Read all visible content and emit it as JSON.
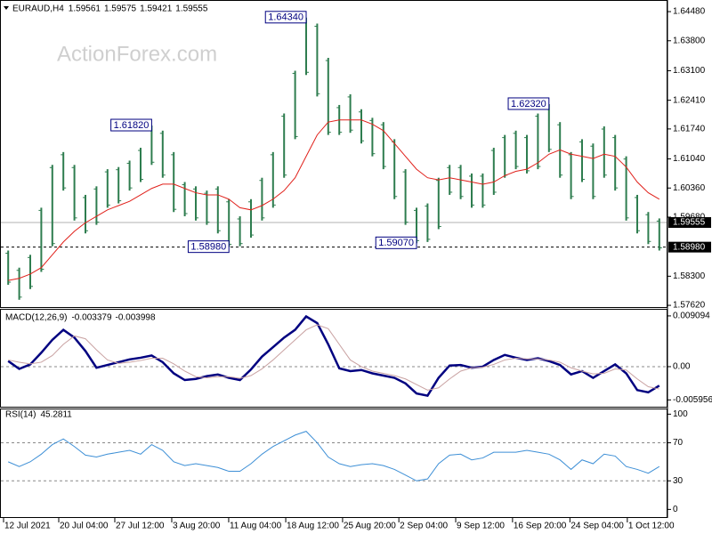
{
  "chart_data": [
    {
      "type": "price-bar",
      "title": "EURAUD,H4",
      "quote": [
        1.59561,
        1.59575,
        1.59421,
        1.59555
      ],
      "watermark": "ActionForex.com",
      "color": "#2e7d4f",
      "xlim": [
        -0.5,
        59.5
      ],
      "xticks": [
        {
          "value": -0.42,
          "label": "12 Jul 2021"
        },
        {
          "value": 4.58,
          "label": "20 Jul 04:00"
        },
        {
          "value": 9.66,
          "label": "27 Jul 12:00"
        },
        {
          "value": 14.82,
          "label": "3 Aug 20:00"
        },
        {
          "value": 19.98,
          "label": "11 Aug 04:00"
        },
        {
          "value": 25.15,
          "label": "18 Aug 12:00"
        },
        {
          "value": 30.3,
          "label": "25 Aug 20:00"
        },
        {
          "value": 35.4,
          "label": "2 Sep 04:00"
        },
        {
          "value": 40.55,
          "label": "9 Sep 12:00"
        },
        {
          "value": 45.7,
          "label": "16 Sep 20:00"
        },
        {
          "value": 50.9,
          "label": "24 Sep 04:00"
        },
        {
          "value": 56.1,
          "label": "1 Oct 12:00"
        }
      ],
      "ylim": [
        1.5758,
        1.6471
      ],
      "yticks": [
        {
          "value": 1.6448,
          "label": "1.64480"
        },
        {
          "value": 1.638,
          "label": "1.63800"
        },
        {
          "value": 1.631,
          "label": "1.63100"
        },
        {
          "value": 1.6241,
          "label": "1.62410"
        },
        {
          "value": 1.6174,
          "label": "1.61740"
        },
        {
          "value": 1.6104,
          "label": "1.61040"
        },
        {
          "value": 1.6036,
          "label": "1.60360"
        },
        {
          "value": 1.5968,
          "label": "1.59680"
        },
        {
          "value": 1.583,
          "label": "1.58300"
        },
        {
          "value": 1.5762,
          "label": "1.57620"
        }
      ],
      "last_price": 1.59555,
      "level_line": {
        "value": 1.5898,
        "label": "1.58980"
      },
      "annotations": [
        {
          "bar": 13,
          "value": 1.6182,
          "label": "1.61820"
        },
        {
          "bar": 27,
          "value": 1.6434,
          "label": "1.64340"
        },
        {
          "bar": 20,
          "value": 1.5898,
          "label": "1.58980"
        },
        {
          "bar": 37,
          "value": 1.5907,
          "label": "1.59070"
        },
        {
          "bar": 49,
          "value": 1.6232,
          "label": "1.62320"
        }
      ],
      "high": [
        1.589,
        1.585,
        1.588,
        1.599,
        1.609,
        1.612,
        1.609,
        1.602,
        1.604,
        1.608,
        1.6085,
        1.61,
        1.613,
        1.6182,
        1.617,
        1.612,
        1.605,
        1.604,
        1.603,
        1.604,
        1.601,
        1.597,
        1.601,
        1.606,
        1.612,
        1.621,
        1.631,
        1.6434,
        1.642,
        1.634,
        1.623,
        1.6255,
        1.622,
        1.62,
        1.619,
        1.615,
        1.608,
        1.599,
        1.6,
        1.606,
        1.609,
        1.609,
        1.607,
        1.607,
        1.613,
        1.616,
        1.617,
        1.616,
        1.621,
        1.6232,
        1.619,
        1.612,
        1.615,
        1.614,
        1.618,
        1.616,
        1.611,
        1.602,
        1.598,
        1.5965
      ],
      "low": [
        1.581,
        1.5775,
        1.58,
        1.584,
        1.59,
        1.603,
        1.596,
        1.593,
        1.595,
        1.599,
        1.6,
        1.603,
        1.605,
        1.609,
        1.606,
        1.598,
        1.597,
        1.596,
        1.595,
        1.593,
        1.5898,
        1.59,
        1.592,
        1.596,
        1.599,
        1.606,
        1.615,
        1.63,
        1.625,
        1.616,
        1.616,
        1.6165,
        1.614,
        1.611,
        1.608,
        1.601,
        1.595,
        1.5907,
        1.591,
        1.594,
        1.602,
        1.601,
        1.599,
        1.599,
        1.602,
        1.606,
        1.608,
        1.607,
        1.608,
        1.612,
        1.606,
        1.601,
        1.605,
        1.601,
        1.606,
        1.603,
        1.596,
        1.593,
        1.5905,
        1.589
      ],
      "ma": {
        "color": "#e0201a",
        "values": [
          1.582,
          1.5825,
          1.5835,
          1.585,
          1.588,
          1.591,
          1.5935,
          1.5955,
          1.597,
          1.5985,
          1.5995,
          1.6005,
          1.602,
          1.6035,
          1.6045,
          1.6045,
          1.6035,
          1.6025,
          1.602,
          1.602,
          1.601,
          1.599,
          1.5985,
          1.5995,
          1.601,
          1.603,
          1.606,
          1.611,
          1.616,
          1.619,
          1.6195,
          1.6195,
          1.6195,
          1.6185,
          1.617,
          1.614,
          1.611,
          1.608,
          1.606,
          1.6055,
          1.606,
          1.6055,
          1.605,
          1.6045,
          1.605,
          1.6065,
          1.6075,
          1.608,
          1.6095,
          1.6115,
          1.6125,
          1.6115,
          1.611,
          1.6105,
          1.6115,
          1.611,
          1.6085,
          1.605,
          1.6025,
          1.601
        ]
      }
    },
    {
      "type": "macd",
      "title": "MACD(12,26,9)",
      "readouts": [
        -0.003379,
        -0.003998
      ],
      "ylim": [
        -0.00734,
        0.0102
      ],
      "yticks": [
        0.009094,
        {
          "value": 0,
          "label": "0.00"
        },
        -0.005956
      ],
      "levels": [
        0
      ],
      "series": [
        {
          "color": "#000080",
          "values": [
            0.001,
            -0.0004,
            0.0004,
            0.0025,
            0.0048,
            0.0066,
            0.0052,
            0.0028,
            -0.0002,
            0.0003,
            0.0008,
            0.0013,
            0.0016,
            0.002,
            0.0008,
            -0.0012,
            -0.0024,
            -0.0022,
            -0.0017,
            -0.0014,
            -0.002,
            -0.0024,
            -0.0005,
            0.0018,
            0.0035,
            0.0052,
            0.0066,
            0.009,
            0.0078,
            0.004,
            -0.0003,
            -0.0008,
            -0.0006,
            -0.0012,
            -0.0016,
            -0.002,
            -0.003,
            -0.0048,
            -0.0052,
            -0.002,
            0.0002,
            0.0003,
            -0.0002,
            0,
            0.0012,
            0.0021,
            0.0016,
            0.0012,
            0.0015,
            0.001,
            0.0003,
            -0.0014,
            -0.0008,
            -0.002,
            -0.0008,
            0.0004,
            -0.0012,
            -0.0042,
            -0.0046,
            -0.0034
          ]
        },
        {
          "color": "#c9a2a2",
          "values": [
            0.0012,
            0.0008,
            0.0005,
            0.0008,
            0.002,
            0.004,
            0.0055,
            0.005,
            0.003,
            0.0012,
            0.0006,
            0.0008,
            0.0011,
            0.0015,
            0.0015,
            0.0005,
            -0.0008,
            -0.0018,
            -0.002,
            -0.0018,
            -0.0018,
            -0.0021,
            -0.0016,
            -0.0004,
            0.0012,
            0.003,
            0.0048,
            0.0066,
            0.0075,
            0.0068,
            0.004,
            0.0012,
            0,
            -0.0008,
            -0.0012,
            -0.0016,
            -0.0022,
            -0.0032,
            -0.0042,
            -0.0038,
            -0.0022,
            -0.0008,
            -0.0002,
            -0.0001,
            0.0004,
            0.0012,
            0.0015,
            0.0014,
            0.0014,
            0.0012,
            0.0008,
            -0.0002,
            -0.0008,
            -0.0013,
            -0.0012,
            -0.0004,
            -0.0006,
            -0.0022,
            -0.0036,
            -0.004
          ]
        }
      ]
    },
    {
      "type": "rsi",
      "title": "RSI(14)",
      "readouts": [
        45.2811
      ],
      "ylim": [
        -9,
        105
      ],
      "yticks": [
        100,
        70,
        30,
        0
      ],
      "levels": [
        70,
        30
      ],
      "series": [
        {
          "color": "#3d8fd6",
          "values": [
            50,
            45,
            50,
            58,
            68,
            74,
            66,
            57,
            55,
            58,
            60,
            62,
            58,
            68,
            62,
            50,
            46,
            48,
            46,
            44,
            40,
            40,
            48,
            58,
            66,
            72,
            78,
            82,
            70,
            55,
            48,
            45,
            47,
            48,
            46,
            42,
            36,
            30,
            32,
            48,
            57,
            58,
            52,
            54,
            60,
            60,
            60,
            62,
            60,
            58,
            52,
            42,
            52,
            48,
            58,
            56,
            45,
            42,
            38,
            45
          ]
        }
      ]
    }
  ]
}
